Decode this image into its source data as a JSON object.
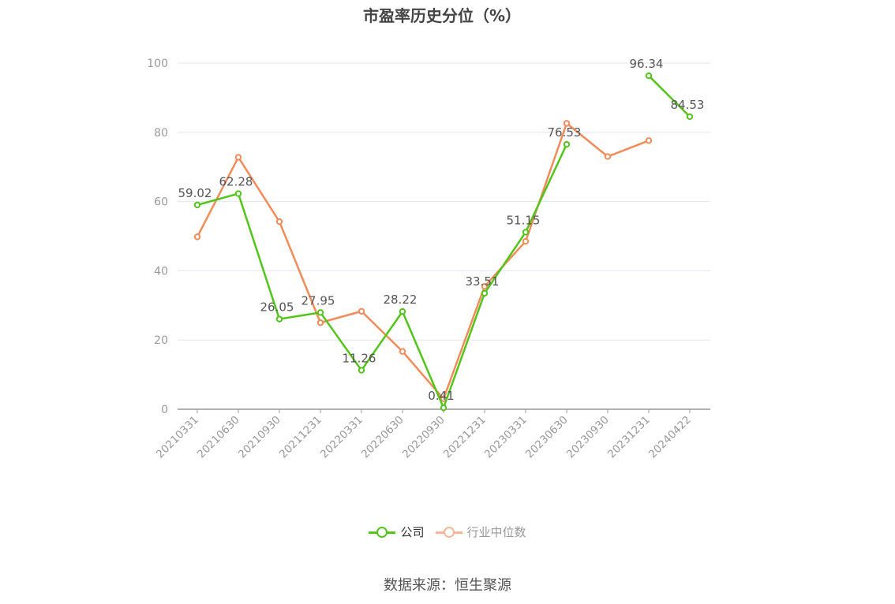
{
  "title": "市盈率历史分位（%）",
  "source": "数据来源：恒生聚源",
  "colors": {
    "company": "#52c41a",
    "industry": "#f08c5a",
    "industry_legend": "#f7b59a",
    "grid": "#e3e6ee",
    "axis": "#999999"
  },
  "chart_data": {
    "type": "line",
    "categories": [
      "20210331",
      "20210630",
      "20210930",
      "20211231",
      "20220331",
      "20220630",
      "20220930",
      "20221231",
      "20230331",
      "20230630",
      "20230930",
      "20231231",
      "20240422"
    ],
    "ylim": [
      0,
      100
    ],
    "yticks": [
      0,
      20,
      40,
      60,
      80,
      100
    ],
    "series": [
      {
        "name": "公司",
        "color": "#52c41a",
        "values": [
          59.02,
          62.28,
          26.05,
          27.95,
          11.26,
          28.22,
          0.41,
          33.51,
          51.15,
          76.53,
          null,
          96.34,
          84.53
        ],
        "labels": [
          "59.02",
          "62.28",
          "26.05",
          "27.95",
          "11.26",
          "28.22",
          "0.41",
          "33.51",
          "51.15",
          "76.53",
          "",
          "96.34",
          "84.53"
        ]
      },
      {
        "name": "行业中位数",
        "color": "#f08c5a",
        "values": [
          49.8,
          72.8,
          54.2,
          25.0,
          28.3,
          16.7,
          3.0,
          35.5,
          48.5,
          82.6,
          73.0,
          77.6,
          null
        ]
      }
    ],
    "legend": "bottom",
    "grid": true
  }
}
